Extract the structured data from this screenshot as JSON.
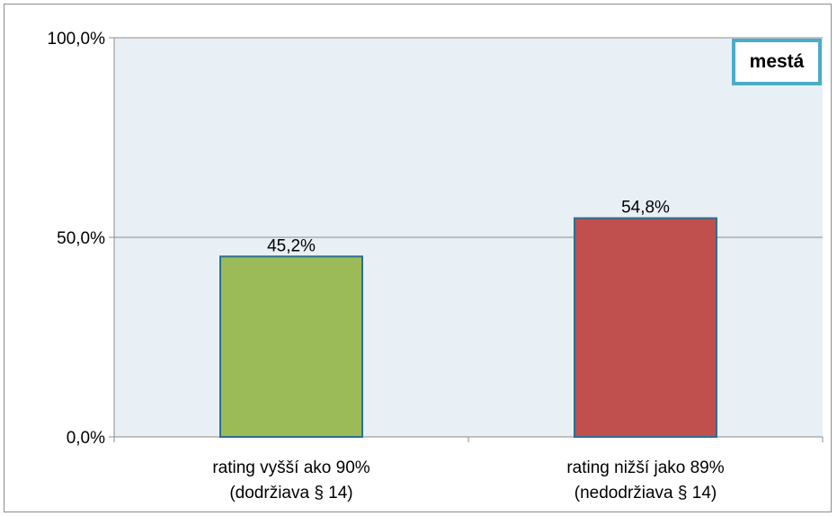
{
  "chart_data": {
    "type": "bar",
    "categories": [
      [
        "rating vyšší ako 90%",
        "(dodržiava § 14)"
      ],
      [
        "rating nižší jako 89%",
        "(nedodržiava § 14)"
      ]
    ],
    "values": [
      45.2,
      54.8
    ],
    "value_labels": [
      "45,2%",
      "54,8%"
    ],
    "bar_colors": [
      "#9bbb59",
      "#c0504d"
    ],
    "bar_border_color": "#2e6e8e",
    "plot_background": "#e8f0f5",
    "ylim": [
      0,
      100
    ],
    "yticks": [
      {
        "value": 0,
        "label": "0,0%"
      },
      {
        "value": 50,
        "label": "50,0%"
      },
      {
        "value": 100,
        "label": "100,0%"
      }
    ],
    "grid": true,
    "legend_placement": "top-right",
    "legend_text": "mestá",
    "legend_border_color": "#4bacc6"
  }
}
